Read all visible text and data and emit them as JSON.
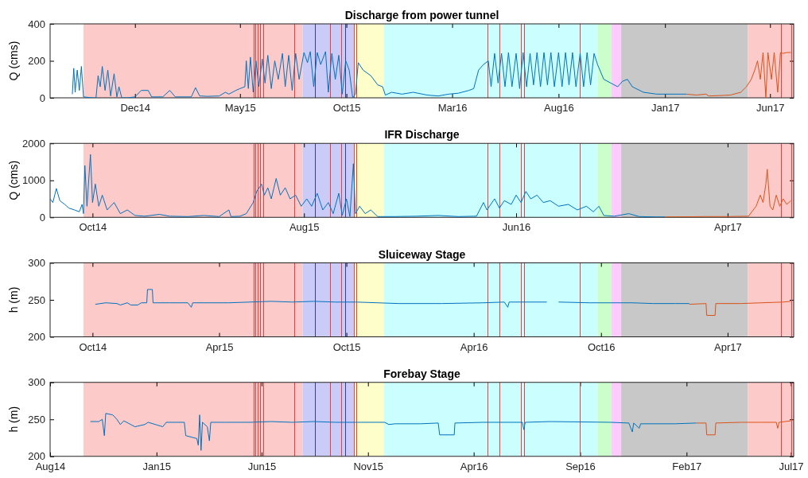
{
  "chart_data": [
    {
      "type": "line",
      "title": "Discharge from power tunnel",
      "ylabel": "Q (cms)",
      "xlim": [
        "2014-08-01",
        "2017-07-05"
      ],
      "ylim": [
        0,
        400
      ],
      "yticks": [
        0,
        200,
        400
      ],
      "xticks": [
        {
          "value": "2014-12-01",
          "label": "Dec14"
        },
        {
          "value": "2015-05-01",
          "label": "May15"
        },
        {
          "value": "2015-10-01",
          "label": "Oct15"
        },
        {
          "value": "2016-03-01",
          "label": "Mar16"
        },
        {
          "value": "2016-08-01",
          "label": "Aug16"
        },
        {
          "value": "2017-01-01",
          "label": "Jan17"
        },
        {
          "value": "2017-06-01",
          "label": "Jun17"
        }
      ],
      "bands": [
        {
          "axis": "x",
          "from": "2014-09-18",
          "to": "2015-07-30",
          "color": "#fdcaca"
        },
        {
          "axis": "x",
          "from": "2015-07-30",
          "to": "2015-10-13",
          "color": "#cbcbf7"
        },
        {
          "axis": "x",
          "from": "2015-10-13",
          "to": "2015-11-24",
          "color": "#fefecb"
        },
        {
          "axis": "x",
          "from": "2015-11-24",
          "to": "2016-09-26",
          "color": "#cbfefe"
        },
        {
          "axis": "x",
          "from": "2016-09-26",
          "to": "2016-10-16",
          "color": "#cbfecb"
        },
        {
          "axis": "x",
          "from": "2016-10-16",
          "to": "2016-10-30",
          "color": "#fecbfe"
        },
        {
          "axis": "x",
          "from": "2016-10-30",
          "to": "2017-04-30",
          "color": "#c8c8c8"
        },
        {
          "axis": "x",
          "from": "2017-04-30",
          "to": "2017-07-05",
          "color": "#fdcaca"
        }
      ],
      "ref_lines": [
        {
          "axis": "x",
          "value": "2015-05-21",
          "color": "#f03c3c"
        },
        {
          "axis": "x",
          "value": "2015-05-23",
          "color": "#f03c3c"
        },
        {
          "axis": "x",
          "value": "2015-05-26",
          "color": "#f03c3c"
        },
        {
          "axis": "x",
          "value": "2015-05-30",
          "color": "#f03c3c"
        },
        {
          "axis": "x",
          "value": "2015-06-03",
          "color": "#f03c3c"
        },
        {
          "axis": "x",
          "value": "2015-07-18",
          "color": "#f03c3c"
        },
        {
          "axis": "x",
          "value": "2015-08-17",
          "color": "#3c3c9a"
        },
        {
          "axis": "x",
          "value": "2015-09-07",
          "color": "#f03c3c"
        },
        {
          "axis": "x",
          "value": "2015-09-24",
          "color": "#f03c3c"
        },
        {
          "axis": "x",
          "value": "2015-09-29",
          "color": "#3c3c9a"
        },
        {
          "axis": "x",
          "value": "2015-10-12",
          "color": "#f03c3c"
        },
        {
          "axis": "x",
          "value": "2015-10-15",
          "color": "#f03c3c"
        },
        {
          "axis": "x",
          "value": "2016-04-21",
          "color": "#f03c3c"
        },
        {
          "axis": "x",
          "value": "2016-05-08",
          "color": "#f03c3c"
        },
        {
          "axis": "x",
          "value": "2016-06-08",
          "color": "#f03c3c"
        },
        {
          "axis": "x",
          "value": "2016-06-12",
          "color": "#f03c3c"
        },
        {
          "axis": "x",
          "value": "2016-08-31",
          "color": "#f03c3c"
        },
        {
          "axis": "x",
          "value": "2017-06-17",
          "color": "#f03c3c"
        },
        {
          "axis": "x",
          "value": "2017-07-01",
          "color": "#f03c3c"
        }
      ],
      "series": [
        {
          "color": "#0072bd",
          "x": [
            "2014-09-02",
            "2014-09-04",
            "2014-09-06",
            "2014-09-09",
            "2014-09-12",
            "2014-09-15",
            "2014-09-18",
            "2014-10-01",
            "2014-10-06",
            "2014-10-09",
            "2014-10-12",
            "2014-10-15",
            "2014-10-19",
            "2014-10-23",
            "2014-10-27",
            "2014-11-01",
            "2014-11-05",
            "2014-11-08",
            "2014-11-12",
            "2014-11-20",
            "2014-12-01",
            "2014-12-10",
            "2014-12-20",
            "2014-12-25",
            "2015-01-10",
            "2015-01-20",
            "2015-01-28",
            "2015-02-20",
            "2015-02-26",
            "2015-03-04",
            "2015-03-15",
            "2015-04-01",
            "2015-04-10",
            "2015-04-15",
            "2015-04-25",
            "2015-05-01",
            "2015-05-08",
            "2015-05-10",
            "2015-05-13",
            "2015-05-16",
            "2015-05-20",
            "2015-05-24",
            "2015-05-28",
            "2015-06-02",
            "2015-06-06",
            "2015-06-10",
            "2015-06-15",
            "2015-06-20",
            "2015-06-25",
            "2015-07-01",
            "2015-07-05",
            "2015-07-10",
            "2015-07-15",
            "2015-07-20",
            "2015-07-25",
            "2015-08-01",
            "2015-08-06",
            "2015-08-10",
            "2015-08-15",
            "2015-08-20",
            "2015-08-25",
            "2015-09-01",
            "2015-09-05",
            "2015-09-10",
            "2015-09-15",
            "2015-09-20",
            "2015-09-25",
            "2015-09-30",
            "2015-10-05",
            "2015-10-10",
            "2015-10-14",
            "2015-10-18",
            "2015-10-25",
            "2015-11-05",
            "2015-11-15",
            "2015-11-22",
            "2015-11-26",
            "2015-12-05",
            "2015-12-20",
            "2016-01-05",
            "2016-01-25",
            "2016-02-10",
            "2016-02-25",
            "2016-03-10",
            "2016-03-25",
            "2016-04-01",
            "2016-04-08",
            "2016-04-15",
            "2016-04-22",
            "2016-04-26",
            "2016-05-01",
            "2016-05-06",
            "2016-05-11",
            "2016-05-16",
            "2016-05-21",
            "2016-05-26",
            "2016-06-01",
            "2016-06-06",
            "2016-06-11",
            "2016-06-16",
            "2016-06-21",
            "2016-06-26",
            "2016-07-01",
            "2016-07-06",
            "2016-07-11",
            "2016-07-16",
            "2016-07-21",
            "2016-07-26",
            "2016-08-01",
            "2016-08-06",
            "2016-08-11",
            "2016-08-16",
            "2016-08-21",
            "2016-08-26",
            "2016-09-01",
            "2016-09-06",
            "2016-09-11",
            "2016-09-16",
            "2016-09-21",
            "2016-09-26",
            "2016-10-05",
            "2016-10-15",
            "2016-10-25",
            "2016-11-01",
            "2016-11-08",
            "2016-11-15",
            "2016-12-01",
            "2016-12-20",
            "2017-01-10",
            "2017-02-01"
          ],
          "values": [
            20,
            160,
            30,
            150,
            40,
            170,
            5,
            0,
            0,
            120,
            60,
            170,
            40,
            150,
            10,
            130,
            5,
            60,
            0,
            0,
            5,
            40,
            40,
            5,
            5,
            40,
            5,
            5,
            55,
            10,
            8,
            10,
            30,
            20,
            40,
            50,
            60,
            200,
            50,
            220,
            30,
            200,
            60,
            210,
            80,
            230,
            50,
            200,
            100,
            240,
            60,
            230,
            40,
            240,
            100,
            245,
            190,
            250,
            60,
            245,
            180,
            250,
            30,
            240,
            100,
            230,
            20,
            200,
            150,
            0,
            20,
            190,
            150,
            120,
            70,
            60,
            15,
            30,
            20,
            30,
            15,
            10,
            20,
            25,
            40,
            50,
            150,
            180,
            200,
            60,
            240,
            80,
            240,
            60,
            245,
            60,
            240,
            50,
            245,
            60,
            240,
            70,
            245,
            60,
            245,
            70,
            245,
            60,
            245,
            60,
            245,
            70,
            245,
            60,
            240,
            60,
            245,
            70,
            240,
            180,
            100,
            80,
            60,
            90,
            100,
            60,
            30,
            20,
            20,
            20
          ]
        },
        {
          "color": "#d95319",
          "x": [
            "2017-02-01",
            "2017-02-15",
            "2017-03-01",
            "2017-03-05",
            "2017-03-20",
            "2017-04-05",
            "2017-04-20",
            "2017-04-28",
            "2017-05-05",
            "2017-05-10",
            "2017-05-14",
            "2017-05-18",
            "2017-05-22",
            "2017-05-26",
            "2017-05-29",
            "2017-06-03",
            "2017-06-07",
            "2017-06-12",
            "2017-06-16",
            "2017-06-20",
            "2017-06-25",
            "2017-07-01"
          ],
          "values": [
            20,
            15,
            20,
            10,
            12,
            15,
            30,
            60,
            100,
            150,
            200,
            100,
            245,
            0,
            245,
            100,
            245,
            30,
            245,
            240,
            245,
            245
          ]
        }
      ]
    },
    {
      "type": "line",
      "title": "IFR Discharge",
      "ylabel": "Q (cms)",
      "xlim": [
        "2014-08-01",
        "2017-07-05"
      ],
      "ylim": [
        0,
        2000
      ],
      "yticks": [
        0,
        1000,
        2000
      ],
      "xticks": [
        {
          "value": "2014-10-01",
          "label": "Oct14"
        },
        {
          "value": "2015-08-01",
          "label": "Aug15"
        },
        {
          "value": "2016-06-01",
          "label": "Jun16"
        },
        {
          "value": "2017-04-01",
          "label": "Apr17"
        }
      ],
      "bands": [
        {
          "axis": "x",
          "from": "2014-09-18",
          "to": "2015-07-30",
          "color": "#fdcaca"
        },
        {
          "axis": "x",
          "from": "2015-07-30",
          "to": "2015-10-13",
          "color": "#cbcbf7"
        },
        {
          "axis": "x",
          "from": "2015-10-13",
          "to": "2015-11-24",
          "color": "#fefecb"
        },
        {
          "axis": "x",
          "from": "2015-11-24",
          "to": "2016-09-26",
          "color": "#cbfefe"
        },
        {
          "axis": "x",
          "from": "2016-09-26",
          "to": "2016-10-16",
          "color": "#cbfecb"
        },
        {
          "axis": "x",
          "from": "2016-10-16",
          "to": "2016-10-30",
          "color": "#fecbfe"
        },
        {
          "axis": "x",
          "from": "2016-10-30",
          "to": "2017-04-30",
          "color": "#c8c8c8"
        },
        {
          "axis": "x",
          "from": "2017-04-30",
          "to": "2017-07-05",
          "color": "#fdcaca"
        }
      ],
      "ref_lines": [
        {
          "axis": "x",
          "value": "2015-05-21",
          "color": "#f03c3c"
        },
        {
          "axis": "x",
          "value": "2015-05-23",
          "color": "#f03c3c"
        },
        {
          "axis": "x",
          "value": "2015-05-26",
          "color": "#f03c3c"
        },
        {
          "axis": "x",
          "value": "2015-05-30",
          "color": "#f03c3c"
        },
        {
          "axis": "x",
          "value": "2015-06-03",
          "color": "#f03c3c"
        },
        {
          "axis": "x",
          "value": "2015-07-18",
          "color": "#f03c3c"
        },
        {
          "axis": "x",
          "value": "2015-08-17",
          "color": "#3c3c9a"
        },
        {
          "axis": "x",
          "value": "2015-09-07",
          "color": "#f03c3c"
        },
        {
          "axis": "x",
          "value": "2015-09-24",
          "color": "#f03c3c"
        },
        {
          "axis": "x",
          "value": "2015-09-29",
          "color": "#3c3c9a"
        },
        {
          "axis": "x",
          "value": "2015-10-12",
          "color": "#f03c3c"
        },
        {
          "axis": "x",
          "value": "2015-10-15",
          "color": "#f03c3c"
        },
        {
          "axis": "x",
          "value": "2016-04-21",
          "color": "#f03c3c"
        },
        {
          "axis": "x",
          "value": "2016-05-08",
          "color": "#f03c3c"
        },
        {
          "axis": "x",
          "value": "2016-06-08",
          "color": "#f03c3c"
        },
        {
          "axis": "x",
          "value": "2016-06-12",
          "color": "#f03c3c"
        },
        {
          "axis": "x",
          "value": "2016-08-31",
          "color": "#f03c3c"
        },
        {
          "axis": "x",
          "value": "2017-06-17",
          "color": "#f03c3c"
        },
        {
          "axis": "x",
          "value": "2017-07-01",
          "color": "#f03c3c"
        }
      ],
      "series": [
        {
          "color": "#0072bd",
          "x": [
            "2014-08-01",
            "2014-08-05",
            "2014-08-10",
            "2014-08-15",
            "2014-08-22",
            "2014-08-28",
            "2014-09-05",
            "2014-09-12",
            "2014-09-16",
            "2014-09-18",
            "2014-09-20",
            "2014-09-23",
            "2014-09-28",
            "2014-10-01",
            "2014-10-05",
            "2014-10-10",
            "2014-10-15",
            "2014-10-22",
            "2014-11-01",
            "2014-11-10",
            "2014-11-20",
            "2014-12-01",
            "2014-12-15",
            "2015-01-05",
            "2015-01-20",
            "2015-02-15",
            "2015-03-10",
            "2015-04-01",
            "2015-04-15",
            "2015-04-18",
            "2015-05-01",
            "2015-05-10",
            "2015-05-20",
            "2015-05-25",
            "2015-06-01",
            "2015-06-05",
            "2015-06-10",
            "2015-06-15",
            "2015-06-22",
            "2015-06-28",
            "2015-07-05",
            "2015-07-12",
            "2015-07-20",
            "2015-07-28",
            "2015-08-05",
            "2015-08-12",
            "2015-08-20",
            "2015-08-28",
            "2015-09-05",
            "2015-09-12",
            "2015-09-20",
            "2015-09-25",
            "2015-10-01",
            "2015-10-06",
            "2015-10-11",
            "2015-10-14",
            "2015-10-20",
            "2015-10-28",
            "2015-11-05",
            "2015-11-15",
            "2015-12-10",
            "2016-01-10",
            "2016-02-10",
            "2016-03-10",
            "2016-04-05",
            "2016-04-15",
            "2016-04-20",
            "2016-05-01",
            "2016-05-08",
            "2016-05-15",
            "2016-05-25",
            "2016-06-01",
            "2016-06-08",
            "2016-06-15",
            "2016-06-22",
            "2016-07-01",
            "2016-07-10",
            "2016-07-20",
            "2016-08-01",
            "2016-08-15",
            "2016-08-28",
            "2016-09-10",
            "2016-09-20",
            "2016-09-28",
            "2016-10-05",
            "2016-10-20",
            "2016-11-10",
            "2016-11-25",
            "2016-12-20",
            "2017-01-01"
          ],
          "values": [
            500,
            400,
            780,
            450,
            350,
            250,
            200,
            150,
            350,
            100,
            1400,
            300,
            1700,
            400,
            900,
            300,
            600,
            200,
            400,
            100,
            200,
            50,
            30,
            80,
            30,
            20,
            50,
            20,
            200,
            20,
            30,
            100,
            400,
            700,
            900,
            600,
            800,
            500,
            1050,
            600,
            800,
            500,
            600,
            300,
            500,
            300,
            650,
            200,
            400,
            100,
            650,
            50,
            500,
            20,
            1450,
            100,
            300,
            100,
            200,
            20,
            20,
            30,
            50,
            20,
            30,
            400,
            200,
            500,
            250,
            450,
            350,
            600,
            400,
            700,
            500,
            600,
            400,
            450,
            300,
            350,
            200,
            300,
            150,
            300,
            50,
            30,
            100,
            20,
            10,
            10
          ]
        },
        {
          "color": "#d95319",
          "x": [
            "2017-01-01",
            "2017-03-01",
            "2017-04-01",
            "2017-05-01",
            "2017-05-12",
            "2017-05-18",
            "2017-05-22",
            "2017-05-26",
            "2017-05-28",
            "2017-06-01",
            "2017-06-05",
            "2017-06-10",
            "2017-06-15",
            "2017-06-20",
            "2017-06-25",
            "2017-07-01"
          ],
          "values": [
            10,
            20,
            20,
            30,
            300,
            600,
            400,
            900,
            1300,
            300,
            200,
            600,
            300,
            500,
            350,
            450
          ]
        }
      ]
    },
    {
      "type": "line",
      "title": "Sluiceway Stage",
      "ylabel": "h (m)",
      "xlim": [
        "2014-08-01",
        "2017-07-05"
      ],
      "ylim": [
        200,
        300
      ],
      "yticks": [
        200,
        250,
        300
      ],
      "xticks": [
        {
          "value": "2014-10-01",
          "label": "Oct14"
        },
        {
          "value": "2015-04-01",
          "label": "Apr15"
        },
        {
          "value": "2015-10-01",
          "label": "Oct15"
        },
        {
          "value": "2016-04-01",
          "label": "Apr16"
        },
        {
          "value": "2016-10-01",
          "label": "Oct16"
        },
        {
          "value": "2017-04-01",
          "label": "Apr17"
        }
      ],
      "bands": [
        {
          "axis": "x",
          "from": "2014-09-18",
          "to": "2015-07-30",
          "color": "#fdcaca"
        },
        {
          "axis": "x",
          "from": "2015-07-30",
          "to": "2015-10-13",
          "color": "#cbcbf7"
        },
        {
          "axis": "x",
          "from": "2015-10-13",
          "to": "2015-11-24",
          "color": "#fefecb"
        },
        {
          "axis": "x",
          "from": "2015-11-24",
          "to": "2016-09-26",
          "color": "#cbfefe"
        },
        {
          "axis": "x",
          "from": "2016-09-26",
          "to": "2016-10-16",
          "color": "#cbfecb"
        },
        {
          "axis": "x",
          "from": "2016-10-16",
          "to": "2016-10-30",
          "color": "#fecbfe"
        },
        {
          "axis": "x",
          "from": "2016-10-30",
          "to": "2017-04-30",
          "color": "#c8c8c8"
        },
        {
          "axis": "x",
          "from": "2017-04-30",
          "to": "2017-07-05",
          "color": "#fdcaca"
        }
      ],
      "ref_lines": [
        {
          "axis": "x",
          "value": "2015-05-21",
          "color": "#f03c3c"
        },
        {
          "axis": "x",
          "value": "2015-05-23",
          "color": "#f03c3c"
        },
        {
          "axis": "x",
          "value": "2015-05-26",
          "color": "#f03c3c"
        },
        {
          "axis": "x",
          "value": "2015-05-30",
          "color": "#f03c3c"
        },
        {
          "axis": "x",
          "value": "2015-06-03",
          "color": "#f03c3c"
        },
        {
          "axis": "x",
          "value": "2015-07-18",
          "color": "#f03c3c"
        },
        {
          "axis": "x",
          "value": "2015-08-17",
          "color": "#3c3c9a"
        },
        {
          "axis": "x",
          "value": "2015-09-07",
          "color": "#f03c3c"
        },
        {
          "axis": "x",
          "value": "2015-09-24",
          "color": "#f03c3c"
        },
        {
          "axis": "x",
          "value": "2015-09-29",
          "color": "#3c3c9a"
        },
        {
          "axis": "x",
          "value": "2015-10-12",
          "color": "#f03c3c"
        },
        {
          "axis": "x",
          "value": "2015-10-15",
          "color": "#f03c3c"
        },
        {
          "axis": "x",
          "value": "2016-04-21",
          "color": "#f03c3c"
        },
        {
          "axis": "x",
          "value": "2016-05-08",
          "color": "#f03c3c"
        },
        {
          "axis": "x",
          "value": "2016-06-08",
          "color": "#f03c3c"
        },
        {
          "axis": "x",
          "value": "2016-06-12",
          "color": "#f03c3c"
        },
        {
          "axis": "x",
          "value": "2016-08-31",
          "color": "#f03c3c"
        },
        {
          "axis": "x",
          "value": "2017-06-17",
          "color": "#f03c3c"
        },
        {
          "axis": "x",
          "value": "2017-07-01",
          "color": "#f03c3c"
        }
      ],
      "series": [
        {
          "color": "#0072bd",
          "x": [
            "2014-10-05",
            "2014-10-20",
            "2014-11-05",
            "2014-11-10",
            "2014-11-20",
            "2014-11-25",
            "2014-12-05",
            "2014-12-10",
            "2014-12-18",
            "2014-12-19",
            "2014-12-26",
            "2014-12-27",
            "2015-01-20",
            "2015-02-15",
            "2015-02-20",
            "2015-02-22",
            "2015-03-20",
            "2015-04-15",
            "2015-05-15",
            "2015-06-15",
            "2015-07-15",
            "2015-08-15",
            "2015-09-15",
            "2015-10-15",
            "2015-11-15",
            "2015-12-15",
            "2016-02-15",
            "2016-04-15",
            "2016-05-15",
            "2016-05-20",
            "2016-05-22",
            "2016-07-15",
            "2016-07-22",
            "2016-08-01",
            "2016-09-15",
            "2016-10-15",
            "2016-11-15",
            "2016-12-15",
            "2017-01-15",
            "2017-02-05"
          ],
          "values": [
            244,
            246,
            245,
            243,
            246,
            243,
            243,
            246,
            246,
            264,
            264,
            246,
            246,
            246,
            240,
            246,
            246,
            246,
            247,
            248,
            247,
            248,
            247,
            247,
            246,
            245,
            245,
            246,
            247,
            240,
            247,
            247,
            null,
            247,
            246,
            246,
            246,
            245,
            245,
            245
          ]
        },
        {
          "color": "#d95319",
          "x": [
            "2017-02-05",
            "2017-03-01",
            "2017-03-02",
            "2017-03-14",
            "2017-03-15",
            "2017-04-20",
            "2017-05-20",
            "2017-06-20",
            "2017-07-01"
          ],
          "values": [
            244,
            245,
            229,
            229,
            245,
            245,
            246,
            247,
            248
          ]
        }
      ]
    },
    {
      "type": "line",
      "title": "Forebay Stage",
      "ylabel": "h (m)",
      "xlim": [
        "2014-08-01",
        "2017-07-05"
      ],
      "ylim": [
        200,
        300
      ],
      "yticks": [
        200,
        250,
        300
      ],
      "xticks": [
        {
          "value": "2014-08-01",
          "label": "Aug14"
        },
        {
          "value": "2015-01-01",
          "label": "Jan15"
        },
        {
          "value": "2015-06-01",
          "label": "Jun15"
        },
        {
          "value": "2015-11-01",
          "label": "Nov15"
        },
        {
          "value": "2016-04-01",
          "label": "Apr16"
        },
        {
          "value": "2016-09-01",
          "label": "Sep16"
        },
        {
          "value": "2017-02-01",
          "label": "Feb17"
        },
        {
          "value": "2017-07-01",
          "label": "Jul17"
        }
      ],
      "bands": [
        {
          "axis": "x",
          "from": "2014-09-18",
          "to": "2015-07-30",
          "color": "#fdcaca"
        },
        {
          "axis": "x",
          "from": "2015-07-30",
          "to": "2015-10-13",
          "color": "#cbcbf7"
        },
        {
          "axis": "x",
          "from": "2015-10-13",
          "to": "2015-11-24",
          "color": "#fefecb"
        },
        {
          "axis": "x",
          "from": "2015-11-24",
          "to": "2016-09-26",
          "color": "#cbfefe"
        },
        {
          "axis": "x",
          "from": "2016-09-26",
          "to": "2016-10-16",
          "color": "#cbfecb"
        },
        {
          "axis": "x",
          "from": "2016-10-16",
          "to": "2016-10-30",
          "color": "#fecbfe"
        },
        {
          "axis": "x",
          "from": "2016-10-30",
          "to": "2017-04-30",
          "color": "#c8c8c8"
        },
        {
          "axis": "x",
          "from": "2017-04-30",
          "to": "2017-07-05",
          "color": "#fdcaca"
        }
      ],
      "ref_lines": [
        {
          "axis": "x",
          "value": "2015-05-21",
          "color": "#f03c3c"
        },
        {
          "axis": "x",
          "value": "2015-05-23",
          "color": "#f03c3c"
        },
        {
          "axis": "x",
          "value": "2015-05-26",
          "color": "#f03c3c"
        },
        {
          "axis": "x",
          "value": "2015-05-30",
          "color": "#f03c3c"
        },
        {
          "axis": "x",
          "value": "2015-06-03",
          "color": "#f03c3c"
        },
        {
          "axis": "x",
          "value": "2015-07-18",
          "color": "#f03c3c"
        },
        {
          "axis": "x",
          "value": "2015-08-17",
          "color": "#3c3c9a"
        },
        {
          "axis": "x",
          "value": "2015-09-07",
          "color": "#f03c3c"
        },
        {
          "axis": "x",
          "value": "2015-09-24",
          "color": "#f03c3c"
        },
        {
          "axis": "x",
          "value": "2015-09-29",
          "color": "#3c3c9a"
        },
        {
          "axis": "x",
          "value": "2015-10-12",
          "color": "#f03c3c"
        },
        {
          "axis": "x",
          "value": "2015-10-15",
          "color": "#f03c3c"
        },
        {
          "axis": "x",
          "value": "2016-04-21",
          "color": "#f03c3c"
        },
        {
          "axis": "x",
          "value": "2016-05-08",
          "color": "#f03c3c"
        },
        {
          "axis": "x",
          "value": "2016-06-08",
          "color": "#f03c3c"
        },
        {
          "axis": "x",
          "value": "2016-06-12",
          "color": "#f03c3c"
        },
        {
          "axis": "x",
          "value": "2016-08-31",
          "color": "#f03c3c"
        },
        {
          "axis": "x",
          "value": "2017-06-17",
          "color": "#f03c3c"
        },
        {
          "axis": "x",
          "value": "2017-07-01",
          "color": "#f03c3c"
        }
      ],
      "series": [
        {
          "color": "#0072bd",
          "x": [
            "2014-09-28",
            "2014-10-10",
            "2014-10-15",
            "2014-10-18",
            "2014-10-20",
            "2014-10-30",
            "2014-11-05",
            "2014-11-10",
            "2014-11-15",
            "2014-12-01",
            "2014-12-15",
            "2014-12-20",
            "2015-01-10",
            "2015-01-15",
            "2015-02-10",
            "2015-02-12",
            "2015-02-28",
            "2015-03-02",
            "2015-03-04",
            "2015-03-06",
            "2015-03-08",
            "2015-03-15",
            "2015-03-18",
            "2015-03-20",
            "2015-04-10",
            "2015-05-15",
            "2015-06-15",
            "2015-07-15",
            "2015-08-15",
            "2015-09-15",
            "2015-10-15",
            "2015-11-25",
            "2015-12-01",
            "2015-12-10",
            "2016-01-15",
            "2016-02-10",
            "2016-02-12",
            "2016-03-04",
            "2016-03-05",
            "2016-04-15",
            "2016-06-10",
            "2016-06-12",
            "2016-06-14",
            "2016-07-20",
            "2016-10-15",
            "2016-11-10",
            "2016-11-15",
            "2016-11-17",
            "2016-11-25",
            "2016-11-27",
            "2017-01-15",
            "2017-02-15"
          ],
          "values": [
            247,
            247,
            250,
            228,
            258,
            256,
            250,
            243,
            248,
            240,
            243,
            246,
            240,
            246,
            246,
            228,
            224,
            215,
            256,
            208,
            246,
            240,
            221,
            246,
            246,
            246,
            247,
            246,
            247,
            246,
            246,
            246,
            243,
            244,
            244,
            245,
            229,
            229,
            245,
            246,
            246,
            236,
            246,
            247,
            246,
            245,
            233,
            245,
            238,
            244,
            244,
            245
          ]
        },
        {
          "color": "#d95319",
          "x": [
            "2017-02-15",
            "2017-03-01",
            "2017-03-02",
            "2017-03-14",
            "2017-03-15",
            "2017-04-20",
            "2017-05-20",
            "2017-06-10",
            "2017-06-12",
            "2017-06-14",
            "2017-07-01"
          ],
          "values": [
            245,
            245,
            229,
            229,
            245,
            246,
            246,
            246,
            238,
            246,
            248
          ]
        }
      ]
    }
  ]
}
